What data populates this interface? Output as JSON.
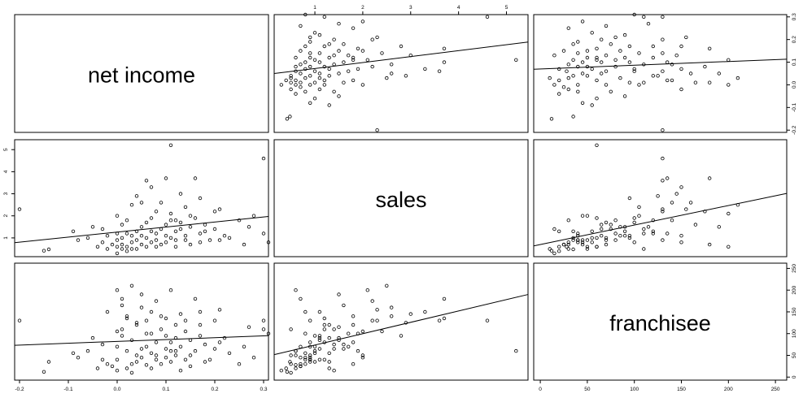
{
  "chart_data": {
    "type": "scatter_matrix",
    "variables": [
      {
        "name": "net income",
        "range": [
          -0.21,
          0.31
        ],
        "ticks": [
          -0.2,
          -0.1,
          0.0,
          0.1,
          0.2,
          0.3
        ],
        "tick_labels": [
          "-0.2",
          "-0.1",
          "0.0",
          "0.1",
          "0.2",
          "0.3"
        ]
      },
      {
        "name": "sales",
        "range": [
          0.15,
          5.45
        ],
        "ticks": [
          1,
          2,
          3,
          4,
          5
        ],
        "tick_labels": [
          "1",
          "2",
          "3",
          "4",
          "5"
        ]
      },
      {
        "name": "franchisee",
        "range": [
          -7,
          262
        ],
        "ticks": [
          0,
          50,
          100,
          150,
          200,
          250
        ],
        "tick_labels": [
          "0",
          "50",
          "100",
          "150",
          "200",
          "250"
        ]
      }
    ],
    "observations": [
      [
        -0.15,
        0.42,
        12
      ],
      [
        -0.14,
        0.48,
        35
      ],
      [
        -0.2,
        2.3,
        130
      ],
      [
        -0.09,
        1.3,
        55
      ],
      [
        -0.08,
        0.9,
        45
      ],
      [
        -0.06,
        1.0,
        60
      ],
      [
        -0.05,
        1.5,
        90
      ],
      [
        -0.04,
        0.6,
        20
      ],
      [
        -0.03,
        0.8,
        40
      ],
      [
        -0.02,
        1.1,
        150
      ],
      [
        -0.02,
        0.5,
        30
      ],
      [
        -0.01,
        0.7,
        25
      ],
      [
        0.0,
        0.3,
        15
      ],
      [
        0.0,
        0.9,
        70
      ],
      [
        0.0,
        1.2,
        40
      ],
      [
        0.0,
        0.6,
        200
      ],
      [
        0.01,
        0.7,
        180
      ],
      [
        0.01,
        0.5,
        110
      ],
      [
        0.01,
        1.0,
        95
      ],
      [
        0.02,
        0.4,
        20
      ],
      [
        0.02,
        1.8,
        140
      ],
      [
        0.02,
        0.6,
        60
      ],
      [
        0.03,
        2.5,
        210
      ],
      [
        0.03,
        0.8,
        30
      ],
      [
        0.03,
        1.1,
        85
      ],
      [
        0.04,
        0.5,
        50
      ],
      [
        0.04,
        1.3,
        120
      ],
      [
        0.04,
        0.9,
        35
      ],
      [
        0.05,
        2.6,
        160
      ],
      [
        0.05,
        0.7,
        45
      ],
      [
        0.05,
        1.5,
        190
      ],
      [
        0.06,
        3.6,
        130
      ],
      [
        0.06,
        1.0,
        70
      ],
      [
        0.06,
        0.6,
        28
      ],
      [
        0.07,
        1.9,
        100
      ],
      [
        0.07,
        0.8,
        55
      ],
      [
        0.07,
        3.3,
        150
      ],
      [
        0.08,
        1.2,
        80
      ],
      [
        0.08,
        0.9,
        40
      ],
      [
        0.08,
        2.2,
        175
      ],
      [
        0.09,
        1.4,
        110
      ],
      [
        0.09,
        0.7,
        30
      ],
      [
        0.1,
        3.7,
        135
      ],
      [
        0.1,
        1.6,
        65
      ],
      [
        0.1,
        0.8,
        45
      ],
      [
        0.11,
        2.1,
        200
      ],
      [
        0.11,
        5.2,
        60
      ],
      [
        0.11,
        1.0,
        35
      ],
      [
        0.12,
        1.8,
        120
      ],
      [
        0.12,
        1.3,
        90
      ],
      [
        0.12,
        0.9,
        50
      ],
      [
        0.13,
        3.0,
        145
      ],
      [
        0.13,
        1.7,
        70
      ],
      [
        0.14,
        1.1,
        40
      ],
      [
        0.14,
        2.4,
        105
      ],
      [
        0.15,
        1.5,
        85
      ],
      [
        0.15,
        0.7,
        25
      ],
      [
        0.16,
        3.7,
        180
      ],
      [
        0.16,
        1.9,
        60
      ],
      [
        0.17,
        1.2,
        120
      ],
      [
        0.17,
        2.8,
        95
      ],
      [
        0.18,
        1.6,
        75
      ],
      [
        0.19,
        0.9,
        40
      ],
      [
        0.2,
        2.2,
        130
      ],
      [
        0.2,
        1.4,
        65
      ],
      [
        0.21,
        2.3,
        155
      ],
      [
        0.22,
        1.1,
        90
      ],
      [
        0.23,
        1.0,
        55
      ],
      [
        0.25,
        1.8,
        30
      ],
      [
        0.26,
        0.7,
        70
      ],
      [
        0.27,
        1.5,
        115
      ],
      [
        0.28,
        2.0,
        45
      ],
      [
        0.3,
        4.6,
        130
      ],
      [
        0.3,
        1.2,
        110
      ],
      [
        0.31,
        0.8,
        100
      ],
      [
        -0.03,
        1.4,
        75
      ],
      [
        0.0,
        2.0,
        105
      ],
      [
        0.01,
        1.6,
        165
      ],
      [
        0.02,
        1.2,
        135
      ],
      [
        0.03,
        0.5,
        10
      ],
      [
        0.04,
        2.9,
        125
      ],
      [
        0.05,
        1.1,
        65
      ],
      [
        0.06,
        1.7,
        100
      ],
      [
        0.07,
        1.3,
        20
      ],
      [
        0.08,
        0.6,
        50
      ],
      [
        0.09,
        2.6,
        140
      ],
      [
        0.1,
        1.1,
        95
      ],
      [
        0.11,
        1.8,
        80
      ],
      [
        0.12,
        0.6,
        60
      ],
      [
        0.13,
        1.4,
        15
      ],
      [
        0.14,
        0.9,
        130
      ],
      [
        0.15,
        2.0,
        50
      ],
      [
        0.17,
        0.8,
        150
      ],
      [
        0.18,
        1.3,
        35
      ],
      [
        0.21,
        0.9,
        80
      ]
    ],
    "fit_lines": "least-squares line in every off-diagonal panel",
    "grid": false,
    "legend": "none"
  }
}
